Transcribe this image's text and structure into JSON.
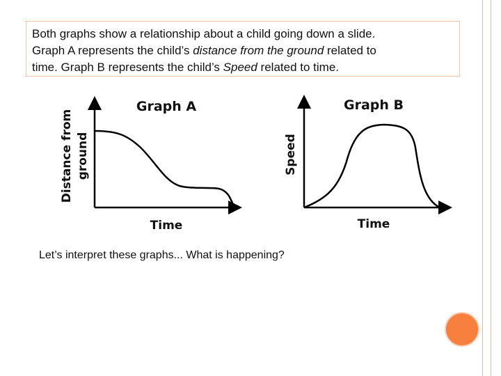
{
  "intro": {
    "line1": "Both graphs show a relationship about a child going down a slide.",
    "line2_pre": "Graph A represents the child’s ",
    "line2_em": "distance from the ground",
    "line2_post": " related to",
    "line3_pre": "time. Graph B represents the child’s ",
    "line3_em": "Speed",
    "line3_post": " related to time."
  },
  "graph_a": {
    "title": "Graph A",
    "ylabel_line1": "Distance from",
    "ylabel_line2": "ground",
    "xlabel": "Time"
  },
  "graph_b": {
    "title": "Graph B",
    "ylabel": "Speed",
    "xlabel": "Time"
  },
  "prompt": "Let’s interpret these graphs... What is happening?",
  "colors": {
    "accent_line": "#f4b69b",
    "box_border": "#f0c7ae",
    "dot": "#f7803f"
  }
}
